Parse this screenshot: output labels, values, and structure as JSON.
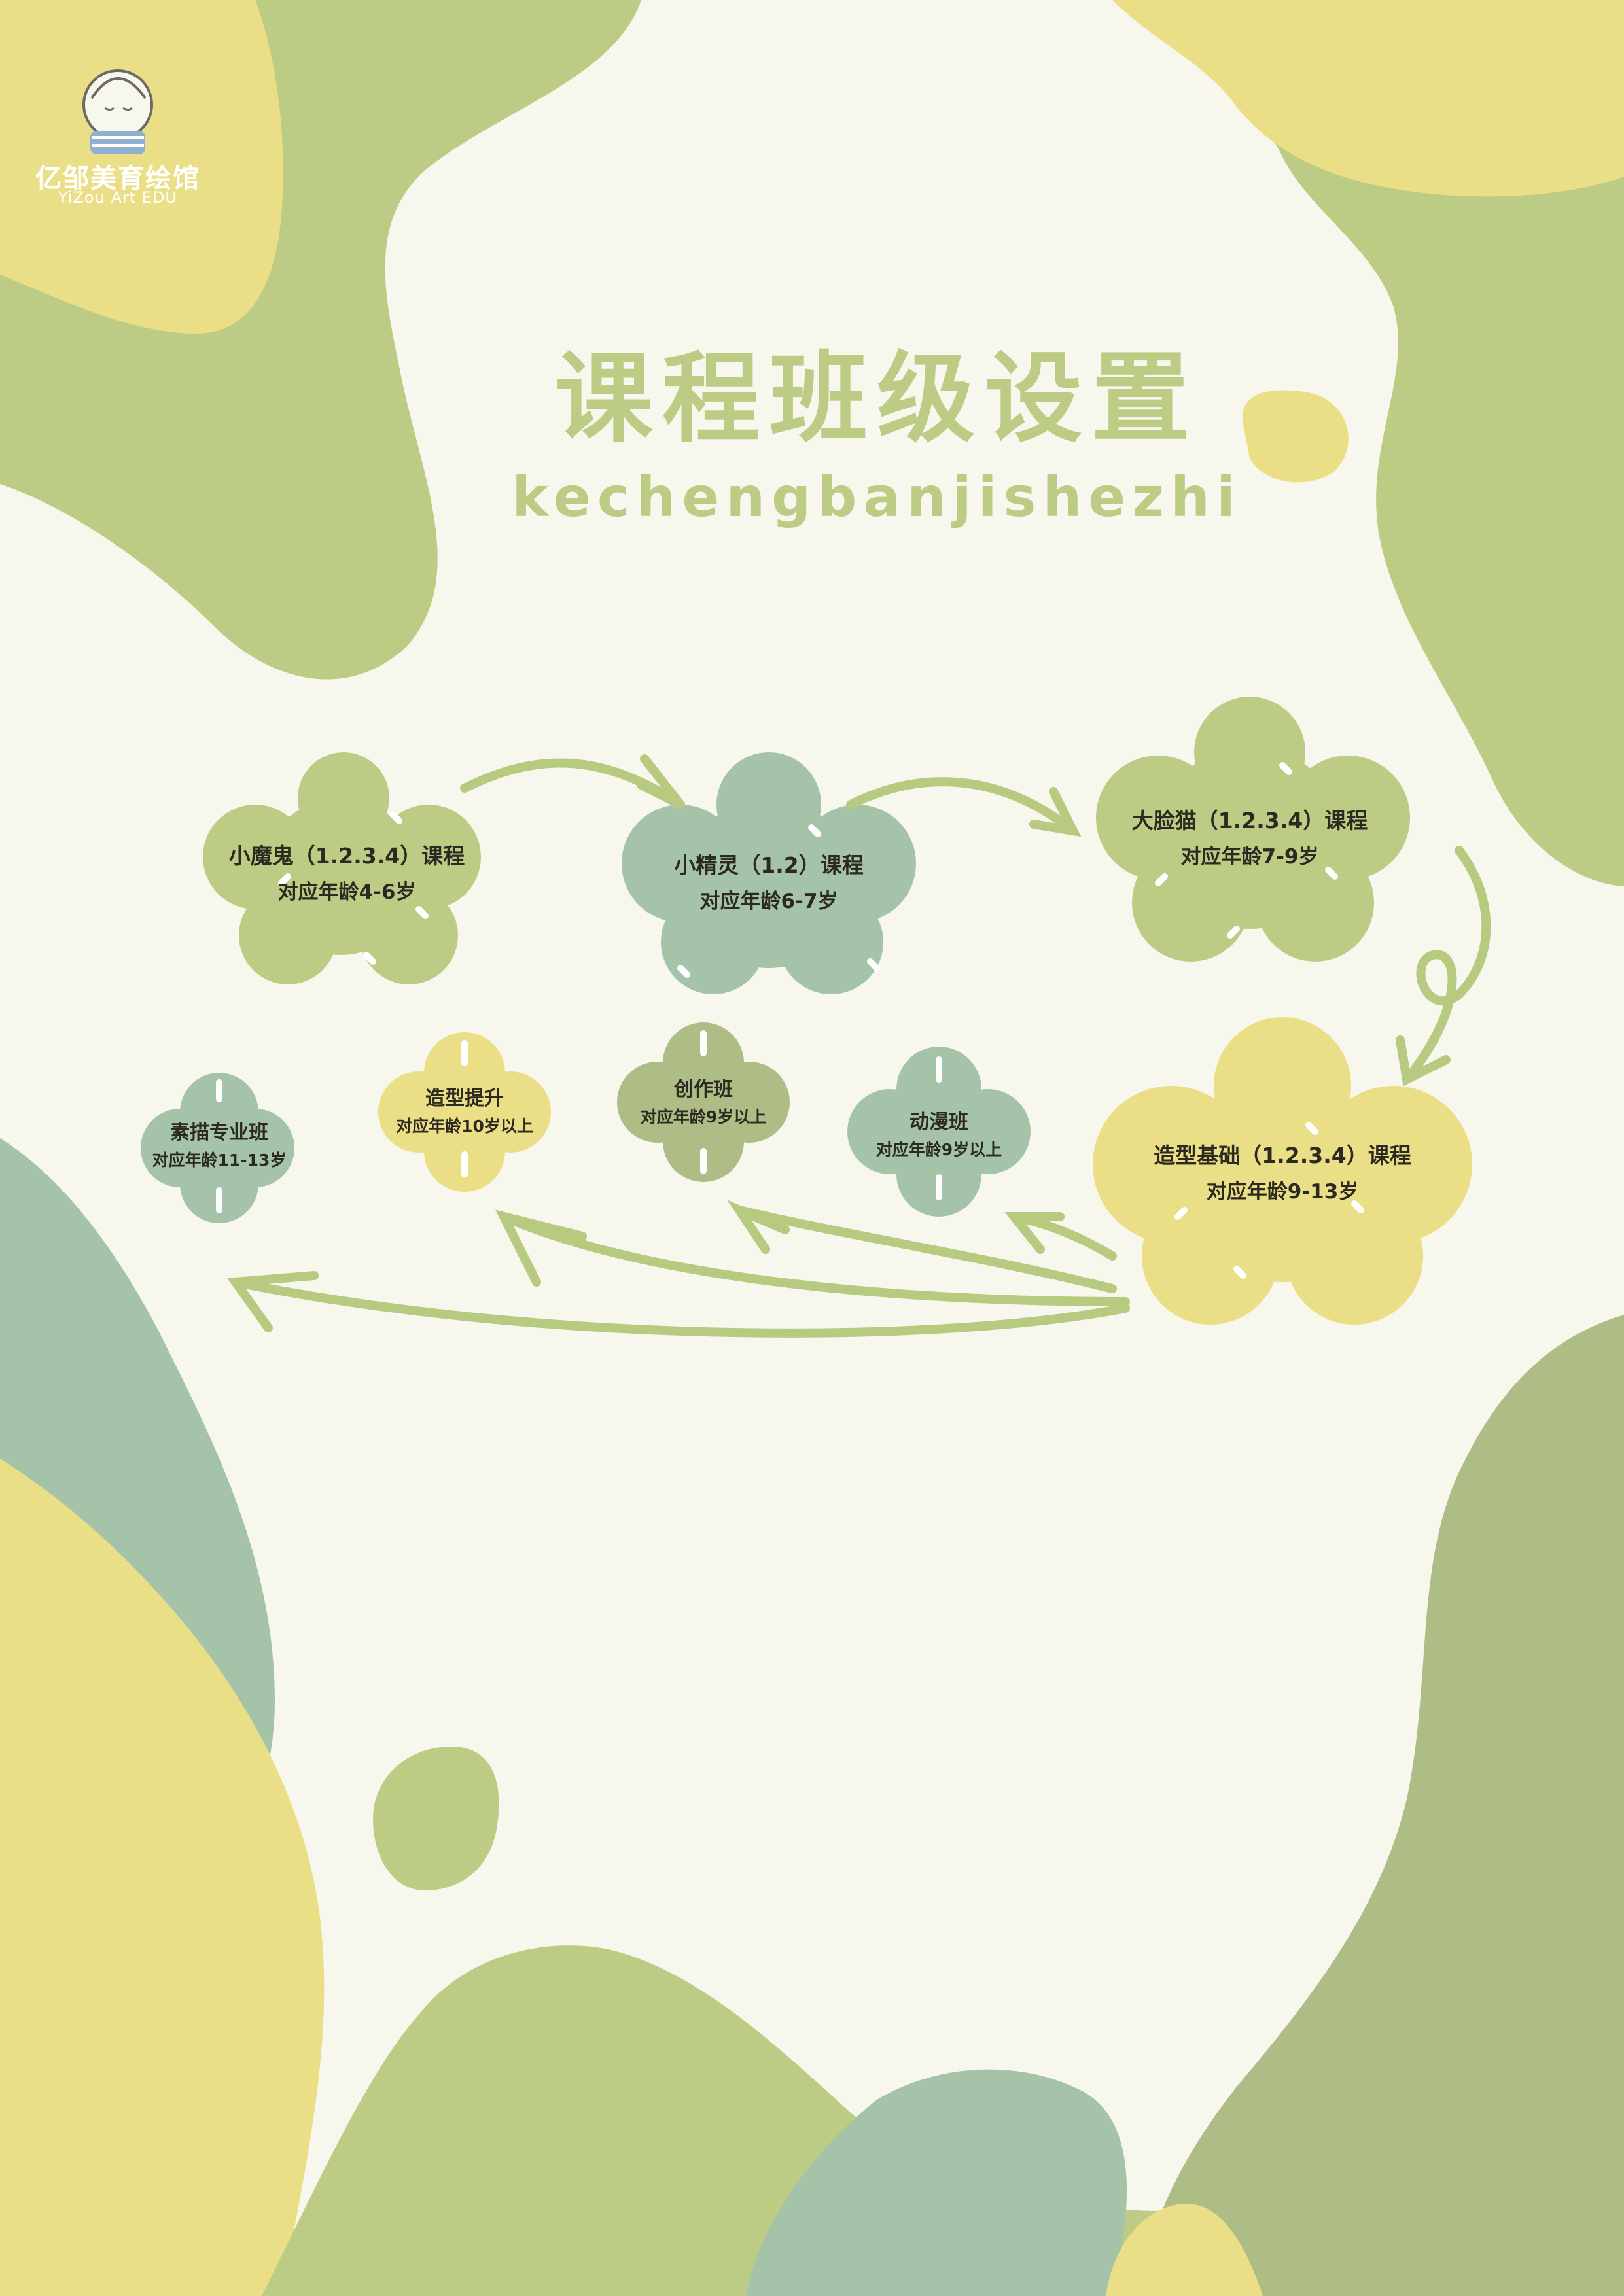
{
  "logo": {
    "name": "亿邹美育绘馆",
    "subtitle": "YiZou Art EDU"
  },
  "header": {
    "title": "课程班级设置",
    "pinyin": "kechengbanjishezhi"
  },
  "courses": [
    {
      "name": "小魔鬼（1.2.3.4）课程",
      "age": "对应年龄4-6岁"
    },
    {
      "name": "小精灵（1.2）课程",
      "age": "对应年龄6-7岁"
    },
    {
      "name": "大脸猫（1.2.3.4）课程",
      "age": "对应年龄7-9岁"
    },
    {
      "name": "造型基础（1.2.3.4）课程",
      "age": "对应年龄9-13岁"
    }
  ],
  "classes": [
    {
      "name": "素描专业班",
      "age": "对应年龄11-13岁"
    },
    {
      "name": "造型提升",
      "age": "对应年龄10岁以上"
    },
    {
      "name": "创作班",
      "age": "对应年龄9岁以上"
    },
    {
      "name": "动漫班",
      "age": "对应年龄9岁以上"
    }
  ],
  "colors": {
    "background": "#f8f7ee",
    "olive_green": "#bccc84",
    "yellow": "#eadf86",
    "sage": "#a5c3a9",
    "dark_olive": "#aebc86",
    "arrow": "#b7ca80",
    "text": "#2c2a20"
  }
}
